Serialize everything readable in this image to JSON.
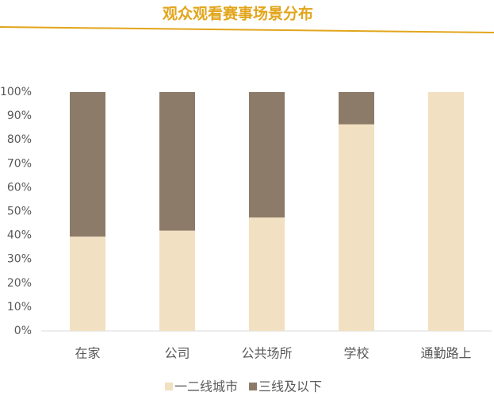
{
  "chart_data": {
    "type": "stacked_bar",
    "title": "观众观看赛事场景分布",
    "categories": [
      "在家",
      "公司",
      "公共场所",
      "学校",
      "通勤路上"
    ],
    "series": [
      {
        "name": "一二线城市",
        "color": "#f2e0c2",
        "values": [
          39.5,
          42,
          47.5,
          86.5,
          100
        ]
      },
      {
        "name": "三线及以下",
        "color": "#8b7b68",
        "values": [
          60.5,
          58,
          52.5,
          13.5,
          0
        ]
      }
    ],
    "ylim": [
      0,
      100
    ],
    "yticks": [
      {
        "value": 0,
        "label": "0%"
      },
      {
        "value": 10,
        "label": "10%"
      },
      {
        "value": 20,
        "label": "20%"
      },
      {
        "value": 30,
        "label": "30%"
      },
      {
        "value": 40,
        "label": "40%"
      },
      {
        "value": 50,
        "label": "50%"
      },
      {
        "value": 60,
        "label": "60%"
      },
      {
        "value": 70,
        "label": "70%"
      },
      {
        "value": 80,
        "label": "80%"
      },
      {
        "value": 90,
        "label": "90%"
      },
      {
        "value": 100,
        "label": "100%"
      }
    ],
    "title_color": "#e2a51c"
  }
}
